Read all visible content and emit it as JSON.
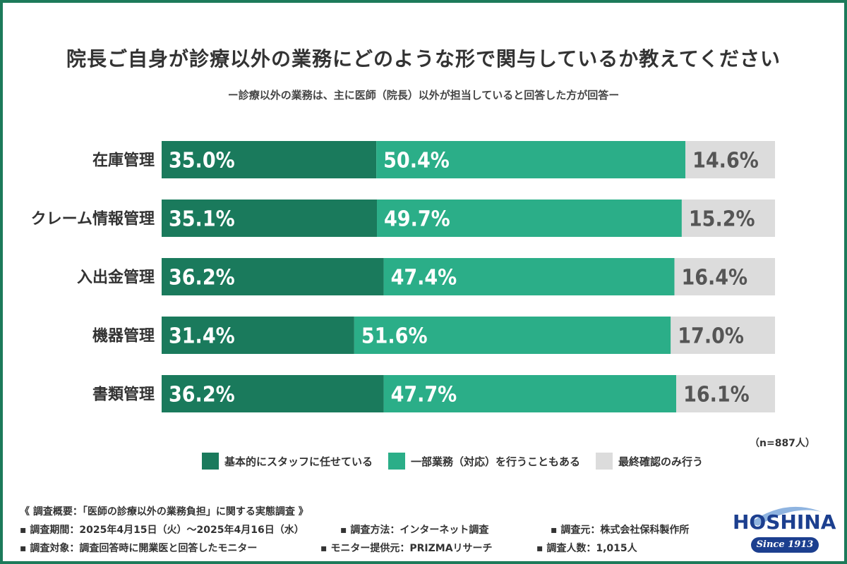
{
  "title": "院長ご自身が診療以外の業務にどのような形で関与しているか教えてください",
  "subtitle": "ー診療以外の業務は、主に医師（院長）以外が担当していると回答した方が回答ー",
  "chart_data": {
    "type": "bar",
    "orientation": "horizontal",
    "stacked": true,
    "categories": [
      "在庫管理",
      "クレーム情報管理",
      "入出金管理",
      "機器管理",
      "書類管理"
    ],
    "series": [
      {
        "name": "基本的にスタッフに任せている",
        "values": [
          35.0,
          35.1,
          36.2,
          31.4,
          36.2
        ],
        "labels": [
          "35.0%",
          "35.1%",
          "36.2%",
          "31.4%",
          "36.2%"
        ]
      },
      {
        "name": "一部業務（対応）を行うこともある",
        "values": [
          50.4,
          49.7,
          47.4,
          51.6,
          47.7
        ],
        "labels": [
          "50.4%",
          "49.7%",
          "47.4%",
          "51.6%",
          "47.7%"
        ]
      },
      {
        "name": "最終確認のみ行う",
        "values": [
          14.6,
          15.2,
          16.4,
          17.0,
          16.1
        ],
        "labels": [
          "14.6%",
          "15.2%",
          "16.4%",
          "17.0%",
          "16.1%"
        ]
      }
    ],
    "xlim": [
      0,
      100
    ],
    "colors": [
      "#1a7a5c",
      "#2bae88",
      "#dcdcdc"
    ],
    "label_colors": [
      "#ffffff",
      "#ffffff",
      "#555555"
    ],
    "legend_placement": "bottom"
  },
  "n_note": "（n=887人）",
  "footer": {
    "heading": "《 調査概要：「医師の診療以外の業務負担」に関する実態調査 》",
    "period": "▪ 調査期間：2025年4月15日（火）～2025年4月16日（水）",
    "method": "▪ 調査方法：インターネット調査",
    "organizer": "▪ 調査元：株式会社保科製作所",
    "target": "▪ 調査対象：調査回答時に開業医と回答したモニター",
    "provider": "▪ モニター提供元：PRIZMAリサーチ",
    "count": "▪ 調査人数：1,015人"
  },
  "logo": {
    "name": "HOSHINA",
    "since": "Since 1913",
    "color": "#1c3f8f"
  }
}
